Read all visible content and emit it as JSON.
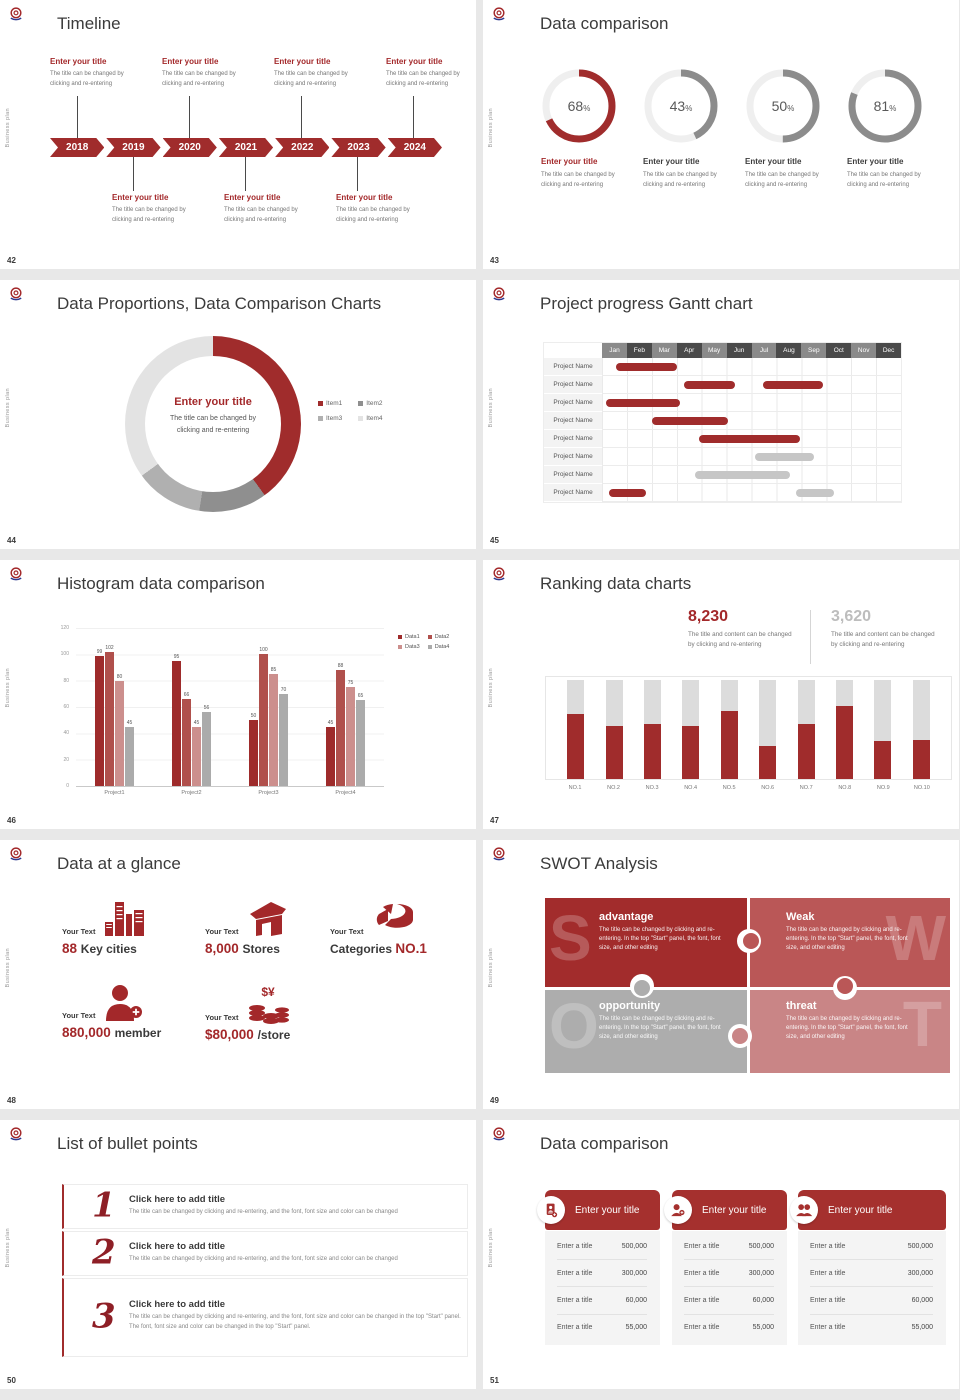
{
  "brand": {
    "sidebar_text": "Business plan",
    "logo_name": "target-swoosh-logo",
    "red": "#A02C2C",
    "red_text": "#A3282A"
  },
  "slides": {
    "timeline": {
      "number": "42",
      "title": "Timeline",
      "years": [
        "2018",
        "2019",
        "2020",
        "2021",
        "2022",
        "2023",
        "2024"
      ],
      "top_indices": [
        0,
        2,
        4,
        6
      ],
      "bottom_indices": [
        1,
        3,
        5
      ],
      "entry": {
        "title": "Enter your title",
        "desc1": "The title can be changed by",
        "desc2": "clicking and re-entering"
      }
    },
    "data_comparison": {
      "number": "43",
      "title": "Data comparison",
      "percent_sign": "%",
      "entry_title": "Enter your title",
      "entry_desc1": "The title can be changed by",
      "entry_desc2": "clicking and re-entering",
      "ring_track": "#EFEFEF",
      "items": [
        {
          "label": "68",
          "percent": 68,
          "color": "#A02C2C",
          "highlight": true
        },
        {
          "label": "43",
          "percent": 43,
          "color": "#8C8C8C",
          "highlight": false
        },
        {
          "label": "50",
          "percent": 50,
          "color": "#8C8C8C",
          "highlight": false
        },
        {
          "label": "81",
          "percent": 81,
          "color": "#8C8C8C",
          "highlight": false
        }
      ]
    },
    "proportions": {
      "number": "44",
      "title": "Data Proportions, Data Comparison Charts",
      "center_title": "Enter your title",
      "center_desc1": "The title can be changed by",
      "center_desc2": "clicking and re-entering",
      "chart": {
        "type": "pie",
        "segments": [
          {
            "name": "Item1",
            "value": 40,
            "color": "#A02C2C"
          },
          {
            "name": "Item2",
            "value": 12.5,
            "color": "#8F8F8F"
          },
          {
            "name": "Item3",
            "value": 12.5,
            "color": "#B0B0B0"
          },
          {
            "name": "Item4",
            "value": 35,
            "color": "#E3E3E3"
          }
        ]
      }
    },
    "gantt": {
      "number": "45",
      "title": "Project progress Gantt chart",
      "months": [
        "Jan",
        "Feb",
        "Mar",
        "Apr",
        "May",
        "Jun",
        "Jul",
        "Aug",
        "Sep",
        "Oct",
        "Nov",
        "Dec"
      ],
      "colors": {
        "red": "#A02C2C",
        "gray": "#C6C6C6",
        "head_light": "#8A8A8A",
        "head_dark": "#4A4A4A"
      },
      "rows": [
        {
          "label": "Project Name",
          "bars": [
            {
              "s": 0.55,
              "e": 3.0,
              "c": "red"
            }
          ]
        },
        {
          "label": "Project Name",
          "bars": [
            {
              "s": 3.3,
              "e": 5.35,
              "c": "red"
            },
            {
              "s": 6.45,
              "e": 8.85,
              "c": "red"
            }
          ]
        },
        {
          "label": "Project Name",
          "bars": [
            {
              "s": 0.15,
              "e": 3.15,
              "c": "red"
            }
          ]
        },
        {
          "label": "Project Name",
          "bars": [
            {
              "s": 2.0,
              "e": 5.05,
              "c": "red"
            }
          ]
        },
        {
          "label": "Project Name",
          "bars": [
            {
              "s": 3.9,
              "e": 7.95,
              "c": "red"
            }
          ]
        },
        {
          "label": "Project Name",
          "bars": [
            {
              "s": 6.15,
              "e": 8.5,
              "c": "gray"
            }
          ]
        },
        {
          "label": "Project Name",
          "bars": [
            {
              "s": 3.75,
              "e": 7.55,
              "c": "gray"
            }
          ]
        },
        {
          "label": "Project Name",
          "bars": [
            {
              "s": 0.3,
              "e": 1.75,
              "c": "red"
            },
            {
              "s": 7.8,
              "e": 9.3,
              "c": "gray"
            }
          ]
        }
      ]
    },
    "histogram": {
      "number": "46",
      "title": "Histogram data comparison",
      "chart": {
        "type": "bar",
        "categories": [
          "Project1",
          "Project2",
          "Project3",
          "Project4"
        ],
        "yticks": [
          0,
          20,
          40,
          60,
          80,
          100,
          120
        ],
        "ylim": [
          0,
          120
        ],
        "series": [
          {
            "name": "Data1",
            "color": "#9E2B2B",
            "values": [
              99,
              95,
              50,
              45
            ]
          },
          {
            "name": "Data2",
            "color": "#B0504C",
            "values": [
              102,
              66,
              100,
              88
            ]
          },
          {
            "name": "Data3",
            "color": "#CC8F8D",
            "values": [
              80,
              45,
              85,
              75
            ]
          },
          {
            "name": "Data4",
            "color": "#ABABAB",
            "values": [
              45,
              56,
              70,
              65
            ]
          }
        ]
      }
    },
    "ranking": {
      "number": "47",
      "title": "Ranking data charts",
      "stat1": {
        "value": "8,230",
        "desc1": "The title and content can be changed",
        "desc2": "by clicking and re-entering"
      },
      "stat2": {
        "value": "3,620",
        "desc1": "The title and content can be changed",
        "desc2": "by clicking and re-entering"
      },
      "chart": {
        "type": "bar",
        "categories": [
          "NO.1",
          "NO.2",
          "NO.3",
          "NO.4",
          "NO.5",
          "NO.6",
          "NO.7",
          "NO.8",
          "NO.9",
          "NO.10"
        ],
        "percents": [
          66,
          54,
          56,
          54,
          69,
          33,
          56,
          74,
          38,
          39
        ],
        "track_color": "#DCDCDC",
        "fill_color": "#A02C2C"
      }
    },
    "glance": {
      "number": "48",
      "title": "Data at a glance",
      "label": "Your Text",
      "items": [
        {
          "icon": "city-icon",
          "parts": [
            {
              "text": "88 ",
              "style": "red"
            },
            {
              "text": "Key cities",
              "style": "dark"
            }
          ]
        },
        {
          "icon": "store-icon",
          "parts": [
            {
              "text": "8,000 ",
              "style": "red"
            },
            {
              "text": "Stores",
              "style": "dark"
            }
          ]
        },
        {
          "icon": "categories-icon",
          "parts": [
            {
              "text": "Categories ",
              "style": "dark"
            },
            {
              "text": "NO.1",
              "style": "red"
            }
          ]
        },
        {
          "icon": "member-add-icon",
          "parts": [
            {
              "text": "880,000 ",
              "style": "red"
            },
            {
              "text": "member",
              "style": "dark"
            }
          ]
        },
        {
          "icon": "coins-icon",
          "parts": [
            {
              "text": "$80,000 ",
              "style": "red"
            },
            {
              "text": "/store",
              "style": "dark"
            }
          ]
        }
      ]
    },
    "swot": {
      "number": "49",
      "title": "SWOT Analysis",
      "body": "The title can be changed by clicking and re-entering. In the top \"Start\" panel, the font, font size, and other editing",
      "quads": [
        {
          "letter": "S",
          "name": "advantage",
          "color": "#A22C2C"
        },
        {
          "letter": "W",
          "name": "Weak",
          "color": "#BA5757"
        },
        {
          "letter": "O",
          "name": "opportunity",
          "color": "#ADADAD"
        },
        {
          "letter": "T",
          "name": "threat",
          "color": "#C98586"
        }
      ]
    },
    "bullets": {
      "number": "50",
      "title": "List of bullet points",
      "items": [
        {
          "num": "1",
          "title": "Click here to add title",
          "body": "The title can be changed by clicking and re-entering, and the font, font size and color can be changed"
        },
        {
          "num": "2",
          "title": "Click here to add title",
          "body": "The title can be changed by clicking and re-entering, and the font, font size and color can be changed"
        },
        {
          "num": "3",
          "title": "Click here to add title",
          "body": "The title can be changed by clicking and re-entering, and the font, font size and color can be changed in the top \"Start\" panel. The font, font size and color can be changed in the top \"Start\" panel."
        }
      ]
    },
    "cards": {
      "number": "51",
      "title": "Data comparison",
      "header": "Enter your title",
      "icons": [
        "idcard-plus-icon",
        "person-plus-icon",
        "people-icon"
      ],
      "rows": [
        {
          "label": "Enter a title",
          "value": "500,000"
        },
        {
          "label": "Enter a title",
          "value": "300,000"
        },
        {
          "label": "Enter a title",
          "value": "60,000"
        },
        {
          "label": "Enter a title",
          "value": "55,000"
        }
      ]
    }
  }
}
